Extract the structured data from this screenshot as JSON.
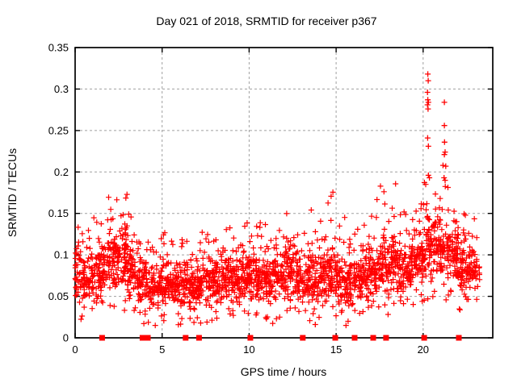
{
  "window": {
    "background": "#ffffff"
  },
  "chart_data": {
    "type": "scatter",
    "title": "Day 021 of 2018, SRMTID for receiver p367",
    "xlabel": "GPS time / hours",
    "ylabel": "SRMTID / TECUs",
    "xlim": [
      0,
      24
    ],
    "ylim": [
      0,
      0.35
    ],
    "xticks": [
      0,
      5,
      10,
      15,
      20
    ],
    "xtick_labels": [
      "0",
      "5",
      "10",
      "15",
      "20"
    ],
    "yticks": [
      0,
      0.05,
      0.1,
      0.15,
      0.2,
      0.25,
      0.3,
      0.35
    ],
    "ytick_labels": [
      "0",
      "0.05",
      "0.1",
      "0.15",
      "0.2",
      "0.25",
      "0.3",
      "0.35"
    ],
    "grid": true,
    "legend": "none",
    "marker": "plus",
    "colors": {
      "points": "#ff0000",
      "grid": "#a0a0a0",
      "axis": "#000000",
      "text": "#000000"
    },
    "density_profile_format": [
      "bin_start_hour",
      "bin_width_hours",
      "band_low_TECU",
      "band_high_TECU",
      "spike_max_TECU",
      "point_count"
    ],
    "density_profile": [
      [
        0.0,
        0.5,
        0.04,
        0.115,
        0.15,
        48
      ],
      [
        0.5,
        0.5,
        0.04,
        0.105,
        0.13,
        45
      ],
      [
        1.0,
        0.5,
        0.045,
        0.115,
        0.16,
        46
      ],
      [
        1.5,
        0.5,
        0.05,
        0.125,
        0.175,
        50
      ],
      [
        2.0,
        0.5,
        0.05,
        0.14,
        0.19,
        55
      ],
      [
        2.5,
        0.5,
        0.05,
        0.145,
        0.192,
        55
      ],
      [
        3.0,
        0.5,
        0.04,
        0.12,
        0.155,
        50
      ],
      [
        3.5,
        0.5,
        0.035,
        0.105,
        0.17,
        46
      ],
      [
        4.0,
        0.5,
        0.03,
        0.095,
        0.12,
        45
      ],
      [
        4.5,
        0.5,
        0.03,
        0.09,
        0.125,
        45
      ],
      [
        5.0,
        0.5,
        0.035,
        0.1,
        0.13,
        46
      ],
      [
        5.5,
        0.5,
        0.03,
        0.09,
        0.12,
        45
      ],
      [
        6.0,
        0.5,
        0.03,
        0.1,
        0.125,
        48
      ],
      [
        6.5,
        0.5,
        0.03,
        0.09,
        0.11,
        45
      ],
      [
        7.0,
        0.5,
        0.035,
        0.1,
        0.14,
        46
      ],
      [
        7.5,
        0.5,
        0.03,
        0.1,
        0.13,
        48
      ],
      [
        8.0,
        0.5,
        0.035,
        0.1,
        0.125,
        48
      ],
      [
        8.5,
        0.5,
        0.04,
        0.105,
        0.135,
        48
      ],
      [
        9.0,
        0.5,
        0.035,
        0.1,
        0.13,
        48
      ],
      [
        9.5,
        0.5,
        0.04,
        0.11,
        0.145,
        48
      ],
      [
        10.0,
        0.5,
        0.04,
        0.115,
        0.15,
        52
      ],
      [
        10.5,
        0.5,
        0.04,
        0.11,
        0.14,
        48
      ],
      [
        11.0,
        0.5,
        0.035,
        0.105,
        0.13,
        48
      ],
      [
        11.5,
        0.5,
        0.04,
        0.11,
        0.145,
        48
      ],
      [
        12.0,
        0.5,
        0.04,
        0.115,
        0.155,
        52
      ],
      [
        12.5,
        0.5,
        0.04,
        0.11,
        0.14,
        48
      ],
      [
        13.0,
        0.5,
        0.035,
        0.105,
        0.13,
        45
      ],
      [
        13.5,
        0.5,
        0.035,
        0.11,
        0.165,
        45
      ],
      [
        14.0,
        0.5,
        0.04,
        0.115,
        0.17,
        48
      ],
      [
        14.5,
        0.5,
        0.04,
        0.125,
        0.19,
        50
      ],
      [
        15.0,
        0.5,
        0.035,
        0.11,
        0.15,
        48
      ],
      [
        15.5,
        0.5,
        0.03,
        0.1,
        0.13,
        48
      ],
      [
        16.0,
        0.5,
        0.035,
        0.105,
        0.14,
        48
      ],
      [
        16.5,
        0.5,
        0.04,
        0.11,
        0.16,
        48
      ],
      [
        17.0,
        0.5,
        0.04,
        0.12,
        0.185,
        48
      ],
      [
        17.5,
        0.5,
        0.045,
        0.13,
        0.185,
        52
      ],
      [
        18.0,
        0.5,
        0.05,
        0.13,
        0.19,
        52
      ],
      [
        18.5,
        0.5,
        0.045,
        0.12,
        0.155,
        48
      ],
      [
        19.0,
        0.5,
        0.05,
        0.125,
        0.165,
        48
      ],
      [
        19.5,
        0.5,
        0.055,
        0.14,
        0.175,
        52
      ],
      [
        20.0,
        0.5,
        0.06,
        0.16,
        0.195,
        52
      ],
      [
        20.5,
        0.5,
        0.06,
        0.155,
        0.19,
        48
      ],
      [
        21.0,
        0.5,
        0.06,
        0.15,
        0.195,
        48
      ],
      [
        21.5,
        0.5,
        0.06,
        0.14,
        0.155,
        52
      ],
      [
        22.0,
        0.5,
        0.04,
        0.13,
        0.15,
        52
      ],
      [
        22.5,
        0.5,
        0.05,
        0.12,
        0.145,
        40
      ],
      [
        23.0,
        0.25,
        0.05,
        0.11,
        0.13,
        14
      ]
    ],
    "outlier_points": [
      [
        20.27,
        0.318
      ],
      [
        20.29,
        0.31
      ],
      [
        20.25,
        0.296
      ],
      [
        20.27,
        0.287
      ],
      [
        20.3,
        0.284
      ],
      [
        20.25,
        0.281
      ],
      [
        20.28,
        0.276
      ],
      [
        20.26,
        0.241
      ],
      [
        20.3,
        0.231
      ],
      [
        20.3,
        0.196
      ],
      [
        20.36,
        0.193
      ],
      [
        21.22,
        0.284
      ],
      [
        21.22,
        0.256
      ],
      [
        21.23,
        0.236
      ],
      [
        21.26,
        0.224
      ],
      [
        21.22,
        0.221
      ],
      [
        21.14,
        0.208
      ],
      [
        21.3,
        0.207
      ],
      [
        21.2,
        0.193
      ],
      [
        21.26,
        0.19
      ],
      [
        13.8,
        0.016
      ]
    ],
    "zero_marker_hours": [
      1.55,
      3.87,
      4.18,
      6.35,
      7.12,
      10.07,
      13.08,
      14.95,
      16.06,
      17.13,
      17.87,
      20.06,
      22.05
    ]
  }
}
